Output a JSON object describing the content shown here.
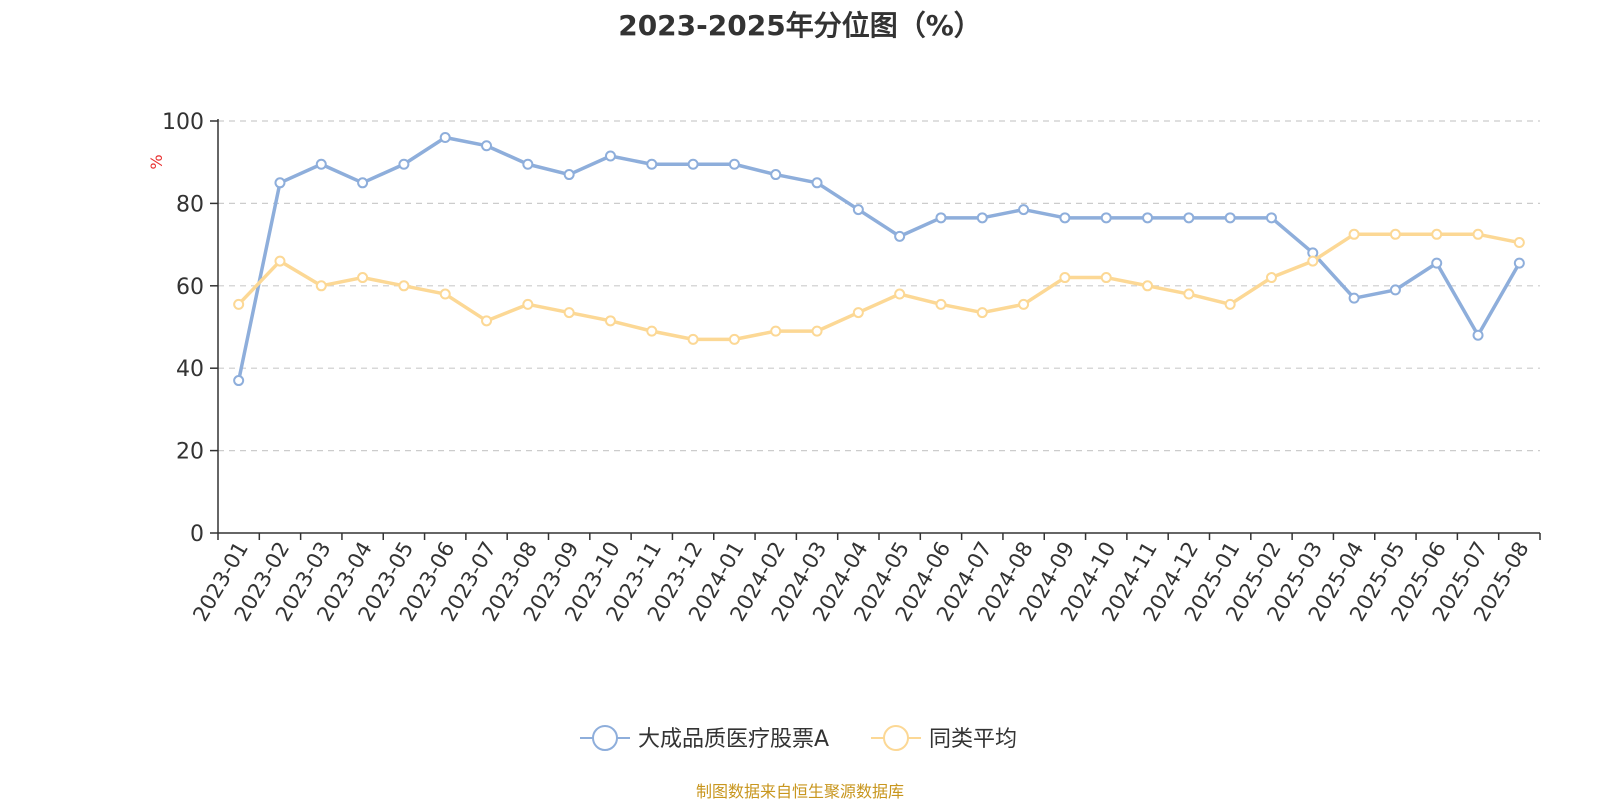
{
  "chart_data": {
    "type": "line",
    "title": "2023-2025年分位图（%）",
    "yunit": "%",
    "ylim": [
      0,
      100
    ],
    "yticks": [
      0,
      20,
      40,
      60,
      80,
      100
    ],
    "grid": true,
    "legend_position": "bottom-center",
    "x": [
      "2023-01",
      "2023-02",
      "2023-03",
      "2023-04",
      "2023-05",
      "2023-06",
      "2023-07",
      "2023-08",
      "2023-09",
      "2023-10",
      "2023-11",
      "2023-12",
      "2024-01",
      "2024-02",
      "2024-03",
      "2024-04",
      "2024-05",
      "2024-06",
      "2024-07",
      "2024-08",
      "2024-09",
      "2024-10",
      "2024-11",
      "2024-12",
      "2025-01",
      "2025-02",
      "2025-03",
      "2025-04",
      "2025-05",
      "2025-06",
      "2025-07",
      "2025-08"
    ],
    "series": [
      {
        "name": "大成品质医疗股票A",
        "color": "#8eaedb",
        "values": [
          37,
          85,
          89.5,
          85,
          89.5,
          96,
          94,
          89.5,
          87,
          91.5,
          89.5,
          89.5,
          89.5,
          87,
          85,
          78.5,
          72,
          76.5,
          76.5,
          78.5,
          76.5,
          76.5,
          76.5,
          76.5,
          76.5,
          76.5,
          68,
          57,
          59,
          65.5,
          48,
          65.5
        ]
      },
      {
        "name": "同类平均",
        "color": "#fcd895",
        "values": [
          55.5,
          66,
          60,
          62,
          60,
          58,
          51.5,
          55.5,
          53.5,
          51.5,
          49,
          47,
          47,
          49,
          49,
          53.5,
          58,
          55.5,
          53.5,
          55.5,
          62,
          62,
          60,
          58,
          55.5,
          62,
          66,
          72.5,
          72.5,
          72.5,
          72.5,
          70.5
        ]
      }
    ]
  },
  "footer": {
    "source": "制图数据来自恒生聚源数据库"
  }
}
